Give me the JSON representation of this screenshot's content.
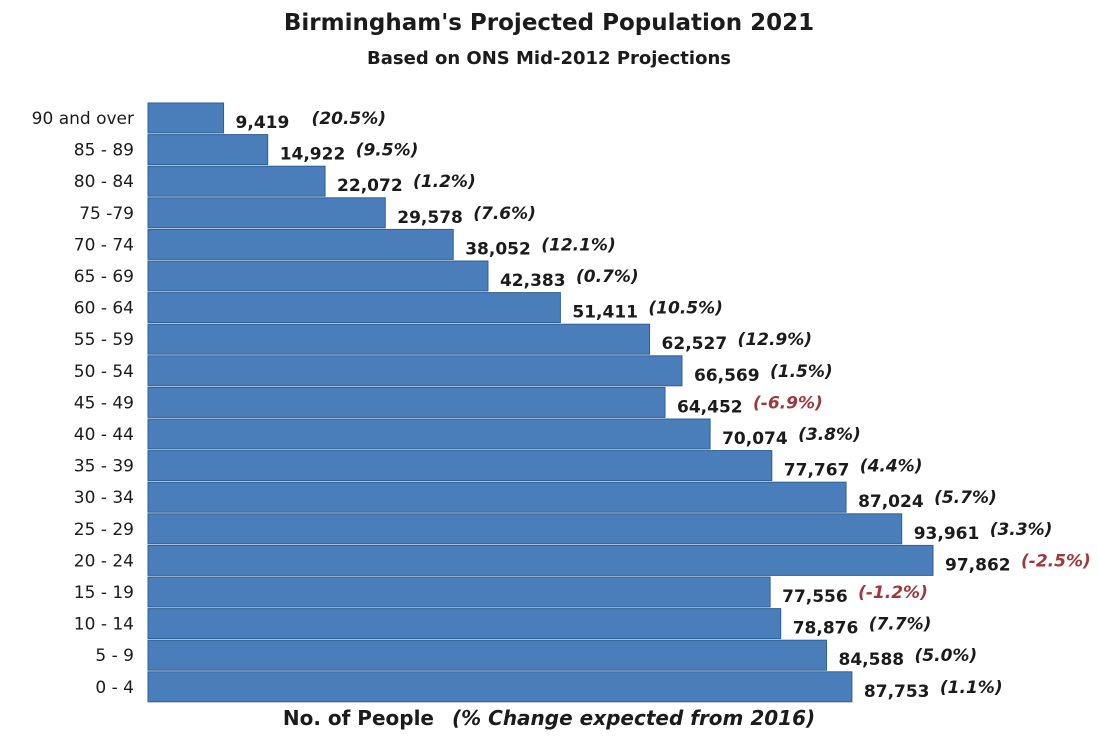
{
  "chart_data": {
    "type": "bar",
    "orientation": "horizontal",
    "title": "Birmingham's Projected Population 2021",
    "subtitle": "Based on ONS Mid-2012 Projections",
    "xlabel": "No. of People",
    "xlabel_note": "(% Change expected from 2016)",
    "categories": [
      "90 and over",
      "85 - 89",
      "80 - 84",
      "75 -79",
      "70 - 74",
      "65 - 69",
      "60 - 64",
      "55 - 59",
      "50 - 54",
      "45 - 49",
      "40 - 44",
      "35 - 39",
      "30 - 34",
      "25 - 29",
      "20 - 24",
      "15 - 19",
      "10 - 14",
      "5 - 9",
      "0 - 4"
    ],
    "values": [
      9419,
      14922,
      22072,
      29578,
      38052,
      42383,
      51411,
      62527,
      66569,
      64452,
      70074,
      77767,
      87024,
      93961,
      97862,
      77556,
      78876,
      84588,
      87753
    ],
    "value_labels": [
      "9,419",
      "14,922",
      "22,072",
      "29,578",
      "38,052",
      "42,383",
      "51,411",
      "62,527",
      "66,569",
      "64,452",
      "70,074",
      "77,767",
      "87,024",
      "93,961",
      "97,862",
      "77,556",
      "78,876",
      "84,588",
      "87,753"
    ],
    "change_labels": [
      "(20.5%)",
      "(9.5%)",
      "(1.2%)",
      "(7.6%)",
      "(12.1%)",
      "(0.7%)",
      "(10.5%)",
      "(12.9%)",
      "(1.5%)",
      "(-6.9%)",
      "(3.8%)",
      "(4.4%)",
      "(5.7%)",
      "(3.3%)",
      "(-2.5%)",
      "(-1.2%)",
      "(7.7%)",
      "(5.0%)",
      "(1.1%)"
    ],
    "change_pct": [
      20.5,
      9.5,
      1.2,
      7.6,
      12.1,
      0.7,
      10.5,
      12.9,
      1.5,
      -6.9,
      3.8,
      4.4,
      5.7,
      3.3,
      -2.5,
      -1.2,
      7.7,
      5.0,
      1.1
    ],
    "xlim": [
      0,
      100000
    ],
    "grid": false,
    "legend": "none",
    "colors": {
      "bar": "#4a7ebb",
      "bar_edge": "#2f5f94",
      "positive_text": "#1b1b1b",
      "negative_text": "#a0383b"
    }
  }
}
